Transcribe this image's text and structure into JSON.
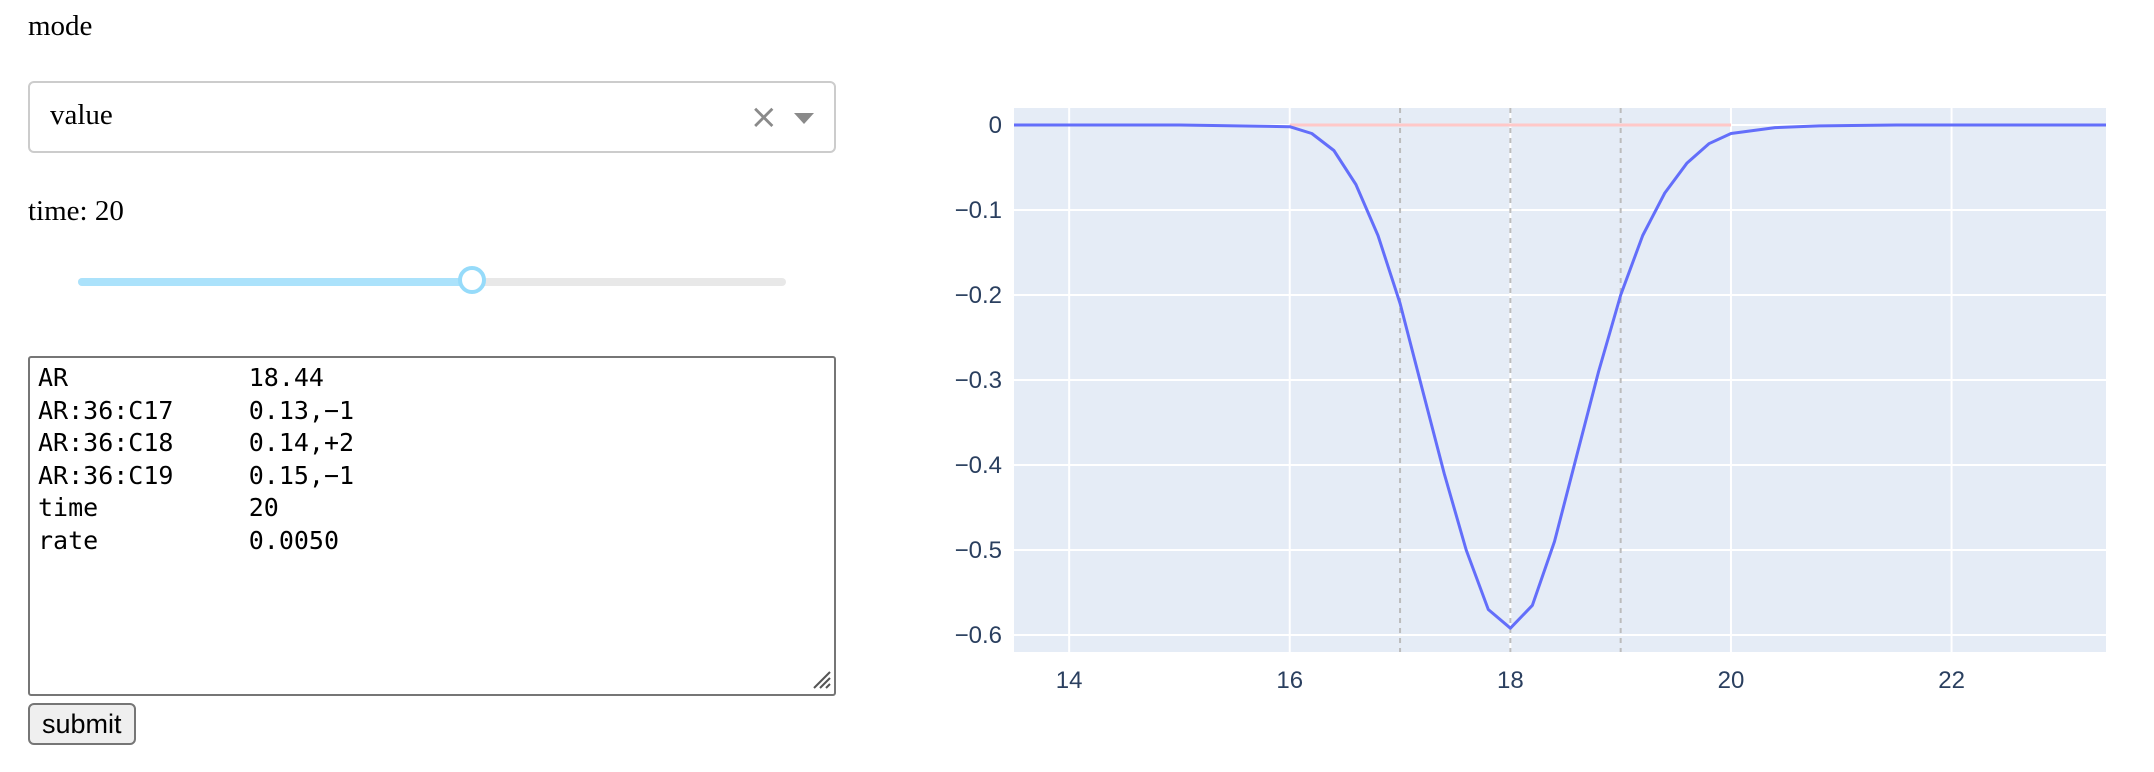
{
  "mode": {
    "label": "mode",
    "selected": "value",
    "clear_icon": "×"
  },
  "time": {
    "label": "time: 20",
    "value": 20,
    "slider_fraction": 0.556
  },
  "textarea": {
    "value": "AR            18.44\nAR:36:C17     0.13,−1\nAR:36:C18     0.14,+2\nAR:36:C19     0.15,−1\ntime          20\nrate          0.0050"
  },
  "submit_label": "submit",
  "colors": {
    "plot_bg": "#e5ecf6",
    "grid": "#ffffff",
    "line_main": "#636efa",
    "line_zero": "#ffc8c8",
    "vline": "#bcbcbc",
    "slider_fill": "#abe2fb",
    "slider_handle": "#96dbfa"
  },
  "chart_data": {
    "type": "line",
    "xlim": [
      13.5,
      23.4
    ],
    "ylim": [
      -0.62,
      0.02
    ],
    "x_ticks": [
      14,
      16,
      18,
      20,
      22
    ],
    "y_ticks": [
      0,
      -0.1,
      -0.2,
      -0.3,
      -0.4,
      -0.5,
      -0.6
    ],
    "x_tick_labels": [
      "14",
      "16",
      "18",
      "20",
      "22"
    ],
    "y_tick_labels": [
      "0",
      "−0.1",
      "−0.2",
      "−0.3",
      "−0.4",
      "−0.5",
      "−0.6"
    ],
    "vertical_lines": [
      17,
      18,
      19
    ],
    "series": [
      {
        "x": [
          13.5,
          15.0,
          16.0,
          16.2,
          16.4,
          16.6,
          16.8,
          17.0,
          17.2,
          17.4,
          17.6,
          17.8,
          18.0,
          18.2,
          18.4,
          18.6,
          18.8,
          19.0,
          19.2,
          19.4,
          19.6,
          19.8,
          20.0,
          20.4,
          20.8,
          21.5,
          23.4
        ],
        "y": [
          0,
          0,
          -0.002,
          -0.01,
          -0.03,
          -0.07,
          -0.13,
          -0.21,
          -0.31,
          -0.41,
          -0.5,
          -0.57,
          -0.592,
          -0.565,
          -0.49,
          -0.39,
          -0.29,
          -0.2,
          -0.13,
          -0.08,
          -0.045,
          -0.022,
          -0.01,
          -0.003,
          -0.001,
          0,
          0
        ],
        "color": "#636efa"
      },
      {
        "x": [
          16.0,
          20.0
        ],
        "y": [
          0,
          0
        ],
        "color": "#ffc8c8"
      }
    ]
  }
}
